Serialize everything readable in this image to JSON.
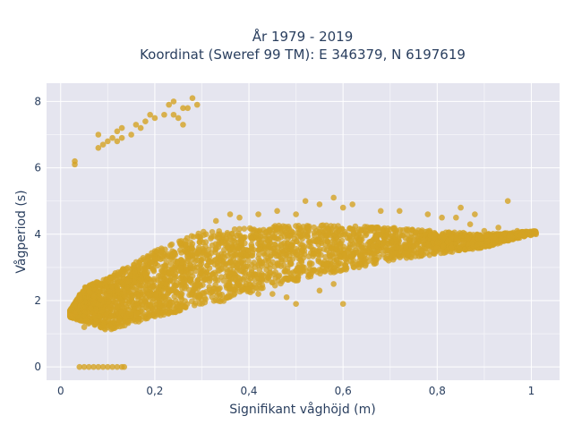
{
  "chart_data": {
    "type": "scatter",
    "title_line1": "År 1979 - 2019",
    "title_line2": "Koordinat (Sweref 99 TM): E 346379, N 6197619",
    "xlabel": "Signifikant våghöjd (m)",
    "ylabel": "Vågperiod (s)",
    "xlim": [
      -0.03,
      1.06
    ],
    "ylim": [
      -0.4,
      8.55
    ],
    "xticks": [
      0,
      0.2,
      0.4,
      0.6,
      0.8,
      1
    ],
    "xtick_labels": [
      "0",
      "0,2",
      "0,4",
      "0,6",
      "0,8",
      "1"
    ],
    "yticks": [
      0,
      2,
      4,
      6,
      8
    ],
    "ytick_labels": [
      "0",
      "2",
      "4",
      "6",
      "8"
    ],
    "grid": true,
    "legend": "none",
    "marker_color": "#d4a323",
    "background_color": "#e5e5ef",
    "dense_band": {
      "x_range": [
        0.02,
        1.01
      ],
      "y_lower": [
        [
          0.02,
          1.5
        ],
        [
          0.1,
          1.1
        ],
        [
          0.2,
          1.5
        ],
        [
          0.35,
          2.0
        ],
        [
          0.5,
          2.6
        ],
        [
          0.7,
          3.2
        ],
        [
          0.9,
          3.6
        ],
        [
          1.01,
          4.0
        ]
      ],
      "y_upper": [
        [
          0.02,
          1.7
        ],
        [
          0.05,
          2.4
        ],
        [
          0.1,
          2.7
        ],
        [
          0.2,
          3.5
        ],
        [
          0.3,
          4.1
        ],
        [
          0.5,
          4.3
        ],
        [
          0.7,
          4.2
        ],
        [
          0.9,
          4.0
        ],
        [
          1.01,
          4.1
        ]
      ]
    },
    "points": [
      [
        0.03,
        6.2
      ],
      [
        0.03,
        6.1
      ],
      [
        0.08,
        6.6
      ],
      [
        0.08,
        7.0
      ],
      [
        0.09,
        6.7
      ],
      [
        0.1,
        6.8
      ],
      [
        0.11,
        6.9
      ],
      [
        0.12,
        7.1
      ],
      [
        0.12,
        6.8
      ],
      [
        0.13,
        7.2
      ],
      [
        0.13,
        6.9
      ],
      [
        0.15,
        7.0
      ],
      [
        0.16,
        7.3
      ],
      [
        0.17,
        7.2
      ],
      [
        0.18,
        7.4
      ],
      [
        0.19,
        7.6
      ],
      [
        0.2,
        7.5
      ],
      [
        0.22,
        7.6
      ],
      [
        0.23,
        7.9
      ],
      [
        0.24,
        7.6
      ],
      [
        0.25,
        7.5
      ],
      [
        0.26,
        7.3
      ],
      [
        0.26,
        7.8
      ],
      [
        0.27,
        7.8
      ],
      [
        0.28,
        8.1
      ],
      [
        0.29,
        7.9
      ],
      [
        0.24,
        8.0
      ],
      [
        0.04,
        0.0
      ],
      [
        0.05,
        0.0
      ],
      [
        0.06,
        0.0
      ],
      [
        0.07,
        0.0
      ],
      [
        0.08,
        0.0
      ],
      [
        0.09,
        0.0
      ],
      [
        0.1,
        0.0
      ],
      [
        0.11,
        0.0
      ],
      [
        0.12,
        0.0
      ],
      [
        0.13,
        0.0
      ],
      [
        0.135,
        0.0
      ],
      [
        0.02,
        1.55
      ],
      [
        0.03,
        1.6
      ],
      [
        0.04,
        2.1
      ],
      [
        0.05,
        1.2
      ],
      [
        0.52,
        5.0
      ],
      [
        0.55,
        4.9
      ],
      [
        0.58,
        5.1
      ],
      [
        0.6,
        4.8
      ],
      [
        0.62,
        4.9
      ],
      [
        0.68,
        4.7
      ],
      [
        0.72,
        4.7
      ],
      [
        0.78,
        4.6
      ],
      [
        0.81,
        4.5
      ],
      [
        0.85,
        4.8
      ],
      [
        0.87,
        4.3
      ],
      [
        0.9,
        4.1
      ],
      [
        0.93,
        4.2
      ],
      [
        0.95,
        5.0
      ],
      [
        0.97,
        4.1
      ],
      [
        0.98,
        4.0
      ],
      [
        1.01,
        4.0
      ],
      [
        0.88,
        4.6
      ],
      [
        0.84,
        4.5
      ],
      [
        0.92,
        3.9
      ],
      [
        0.42,
        2.2
      ],
      [
        0.45,
        2.2
      ],
      [
        0.48,
        2.1
      ],
      [
        0.5,
        1.9
      ],
      [
        0.55,
        2.3
      ],
      [
        0.58,
        2.5
      ],
      [
        0.6,
        1.9
      ],
      [
        0.33,
        4.4
      ],
      [
        0.36,
        4.6
      ],
      [
        0.38,
        4.5
      ],
      [
        0.42,
        4.6
      ],
      [
        0.46,
        4.7
      ],
      [
        0.5,
        4.6
      ]
    ]
  }
}
